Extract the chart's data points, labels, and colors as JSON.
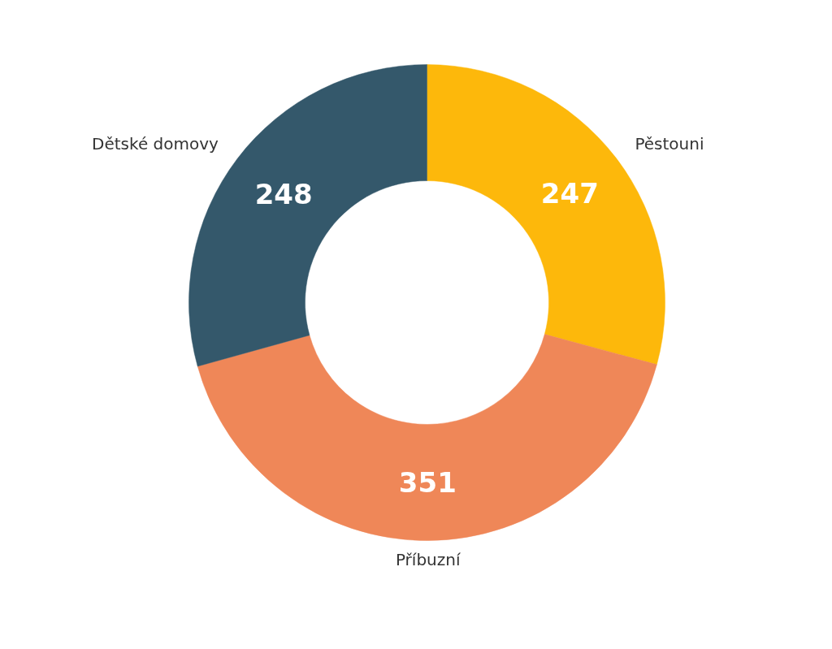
{
  "chart_data": {
    "type": "donut",
    "categories": [
      "Pěstouni",
      "Příbuzní",
      "Dětské domovy"
    ],
    "values": [
      247,
      351,
      248
    ],
    "colors": [
      "#fdb80b",
      "#ef8758",
      "#34586b"
    ],
    "data_labels": true
  }
}
